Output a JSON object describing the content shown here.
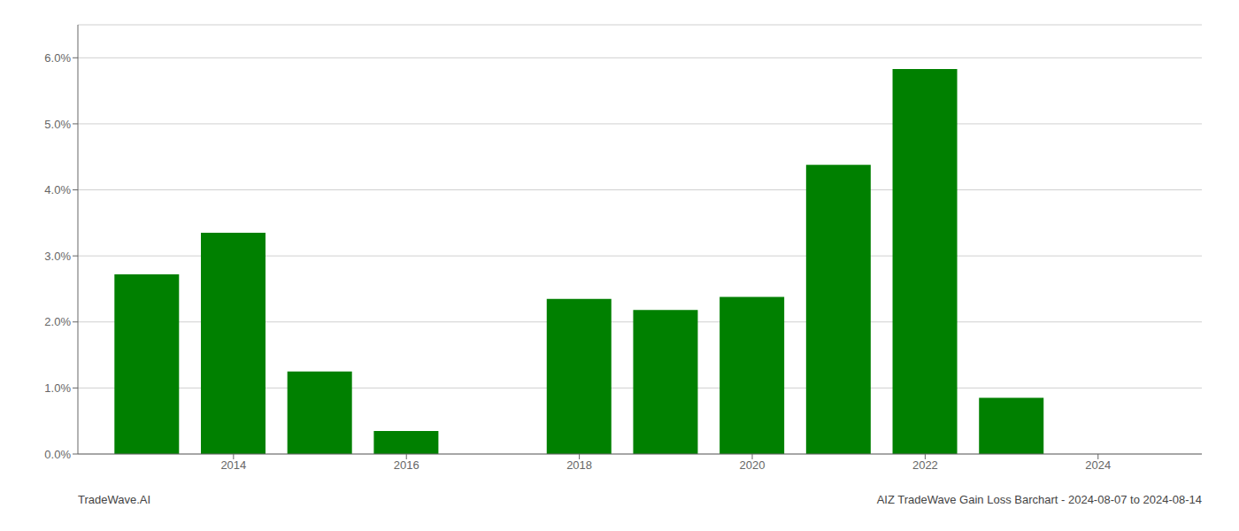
{
  "chart_data": {
    "type": "bar",
    "x": [
      2013,
      2014,
      2015,
      2016,
      2018,
      2019,
      2020,
      2021,
      2022,
      2023
    ],
    "values": [
      0.0272,
      0.0335,
      0.0125,
      0.0035,
      0.0235,
      0.0218,
      0.0238,
      0.0438,
      0.0583,
      0.0085
    ],
    "color": "#008000",
    "xlim": [
      2012.2,
      2025.2
    ],
    "xticks": [
      2014,
      2016,
      2018,
      2020,
      2022,
      2024
    ],
    "ylim": [
      0.0,
      0.065
    ],
    "yticks": [
      {
        "value": 0.0,
        "label": "0.0%"
      },
      {
        "value": 0.01,
        "label": "1.0%"
      },
      {
        "value": 0.02,
        "label": "2.0%"
      },
      {
        "value": 0.03,
        "label": "3.0%"
      },
      {
        "value": 0.04,
        "label": "4.0%"
      },
      {
        "value": 0.05,
        "label": "5.0%"
      },
      {
        "value": 0.06,
        "label": "6.0%"
      }
    ],
    "grid": true,
    "annotations": [
      "TradeWave.AI",
      "AIZ TradeWave Gain Loss Barchart - 2024-08-07 to 2024-08-14"
    ]
  }
}
